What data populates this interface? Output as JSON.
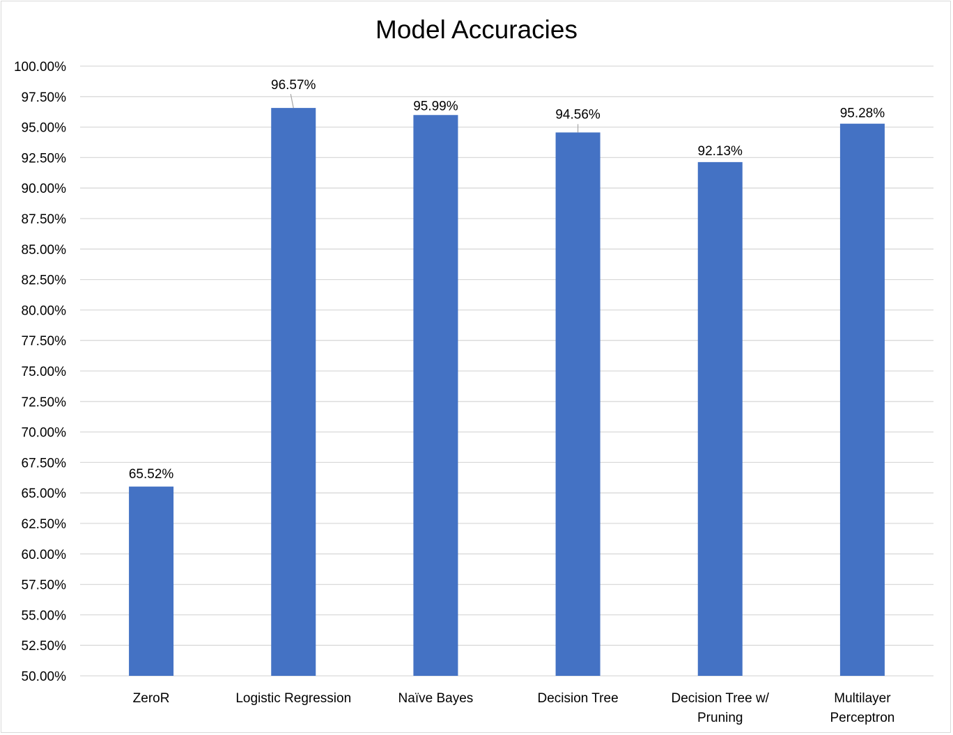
{
  "chart_data": {
    "type": "bar",
    "title": "Model Accuracies",
    "xlabel": "",
    "ylabel": "",
    "categories": [
      [
        "ZeroR"
      ],
      [
        "Logistic Regression"
      ],
      [
        "Naïve Bayes"
      ],
      [
        "Decision Tree"
      ],
      [
        "Decision Tree w/",
        "Pruning"
      ],
      [
        "Multilayer",
        "Perceptron"
      ]
    ],
    "values": [
      65.52,
      96.57,
      95.99,
      94.56,
      92.13,
      95.28
    ],
    "data_labels": [
      "65.52%",
      "96.57%",
      "95.99%",
      "94.56%",
      "92.13%",
      "95.28%"
    ],
    "ylim": [
      50,
      100
    ],
    "y_ticks": [
      "50.00%",
      "52.50%",
      "55.00%",
      "57.50%",
      "60.00%",
      "62.50%",
      "65.00%",
      "67.50%",
      "70.00%",
      "72.50%",
      "75.00%",
      "77.50%",
      "80.00%",
      "82.50%",
      "85.00%",
      "87.50%",
      "90.00%",
      "92.50%",
      "95.00%",
      "97.50%",
      "100.00%"
    ],
    "grid": true,
    "legend": "none",
    "bar_color": "#4472c4",
    "grid_color": "#d9d9d9",
    "leader_line_color": "#a6a6a6"
  }
}
